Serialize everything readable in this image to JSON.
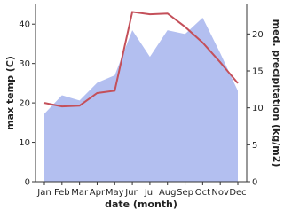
{
  "chart_data": {
    "type": "line-area",
    "x_label": "date (month)",
    "y_label": "max temp (C)",
    "y2_label": "med. precipitation (kg/m2)",
    "categories": [
      "Jan",
      "Feb",
      "Mar",
      "Apr",
      "May",
      "Jun",
      "Jul",
      "Aug",
      "Sep",
      "Oct",
      "Nov",
      "Dec"
    ],
    "ylim": [
      0,
      45
    ],
    "yticks": [
      0,
      10,
      20,
      30,
      40
    ],
    "y2lim": [
      0,
      24
    ],
    "y2ticks": [
      0,
      5,
      10,
      15,
      20
    ],
    "series": [
      {
        "name": "max temp (C)",
        "color": "#c4505a",
        "values": [
          20,
          19.1,
          19.3,
          22.5,
          23.1,
          43.1,
          42.5,
          42.7,
          39.3,
          35.3,
          30.3,
          25
        ]
      },
      {
        "name": "med. precipitation (kg/m2)",
        "color": "#b3bff0",
        "axis": "y2",
        "values": [
          9.2,
          11.7,
          11.0,
          13.4,
          14.4,
          20.5,
          16.9,
          20.5,
          20.0,
          22.2,
          17.4,
          12.3
        ]
      }
    ]
  }
}
